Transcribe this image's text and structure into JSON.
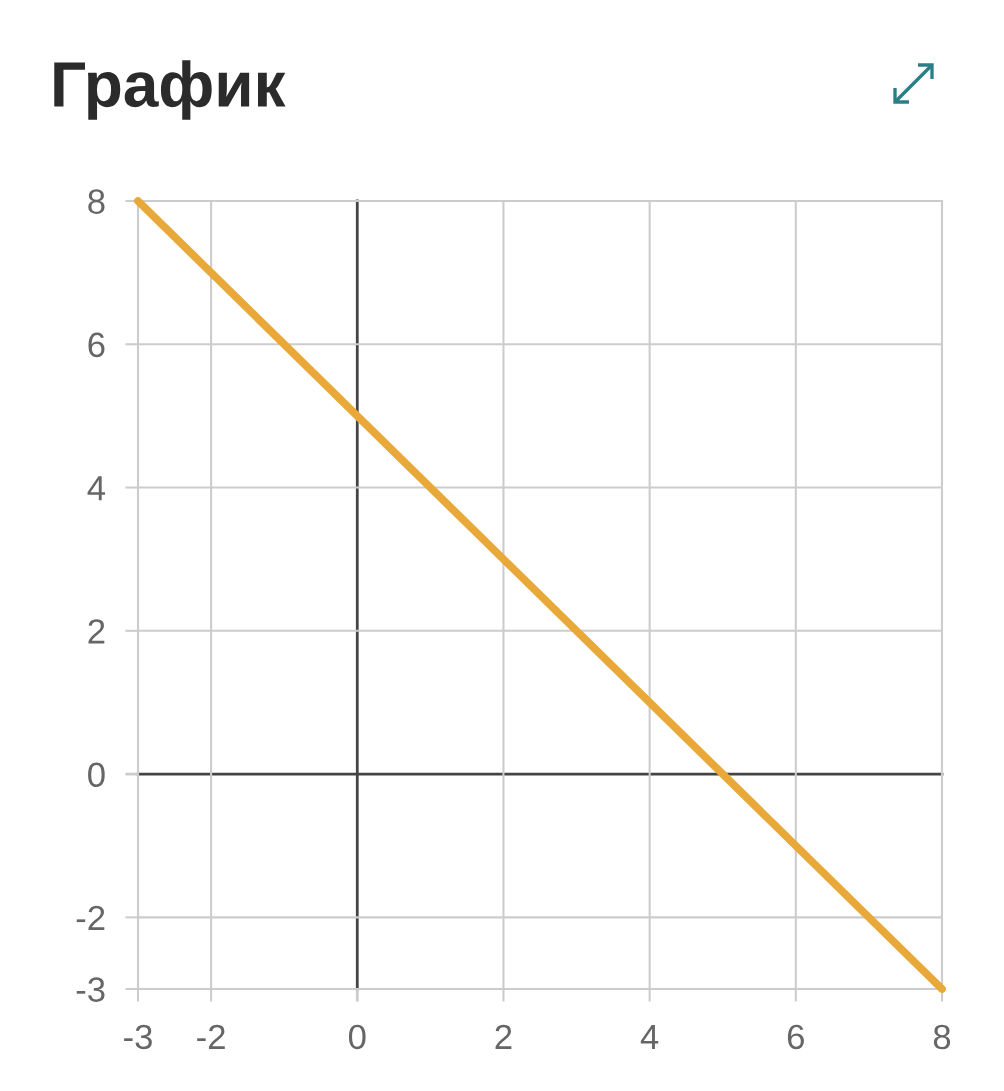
{
  "chart_data": {
    "type": "line",
    "title": "График",
    "x": [
      -3,
      8
    ],
    "series": [
      {
        "color": "#e8a93a",
        "values": [
          8,
          -3
        ]
      }
    ],
    "xlim": [
      -3,
      8
    ],
    "ylim": [
      -3,
      8
    ],
    "xticks": [
      -3,
      -2,
      0,
      2,
      4,
      6,
      8
    ],
    "yticks": [
      -3,
      -2,
      0,
      2,
      4,
      6,
      8
    ],
    "grid": true,
    "line_style": "solid"
  }
}
